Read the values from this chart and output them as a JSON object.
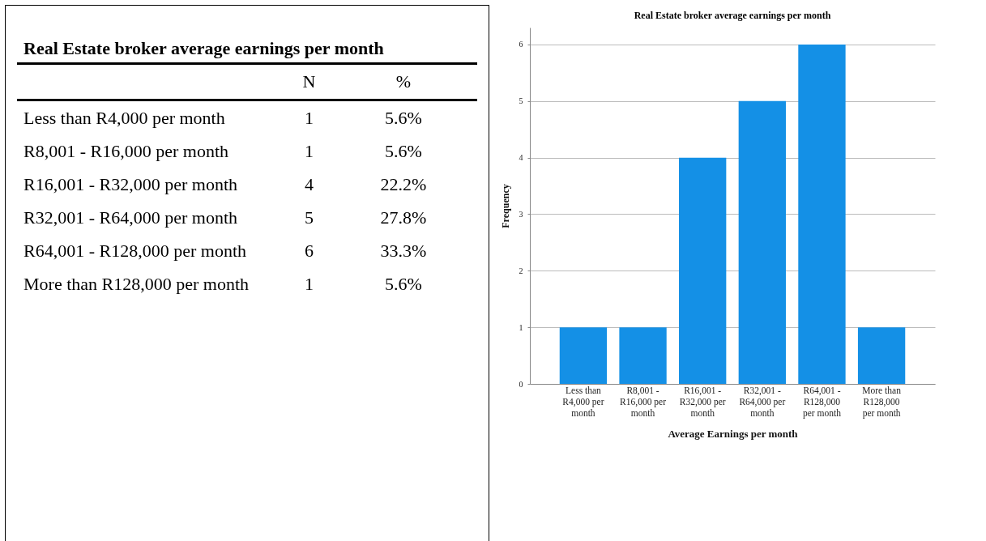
{
  "chart_data": [
    {
      "type": "other",
      "title": "Real Estate broker average earnings per month",
      "annotations": [
        "N",
        "%",
        "Less than R4,000 per month",
        "1",
        "5.6%",
        "R8,001 - R16,000 per month",
        "1",
        "5.6%",
        "R16,001 - R32,000 per month",
        "4",
        "22.2%",
        "R32,001 - R64,000 per month",
        "5",
        "27.8%",
        "R64,001 - R128,000 per month",
        "6",
        "33.3%",
        "More than R128,000 per month",
        "1",
        "5.6%"
      ]
    },
    {
      "type": "bar",
      "title": "Real Estate broker average earnings per month",
      "xlabel": "Average Earnings per month",
      "ylabel": "Frequency",
      "categories": [
        "Less than R4,000 per month",
        "R8,001 - R16,000 per month",
        "R16,001 - R32,000 per month",
        "R32,001 - R64,000 per month",
        "R64,001 - R128,000 per month",
        "More than R128,000 per month"
      ],
      "values": [
        1,
        1,
        4,
        5,
        6,
        1
      ],
      "color": "#1490e6",
      "ylim": [
        0,
        6.3
      ],
      "yticks": [
        0,
        1,
        2,
        3,
        4,
        5,
        6
      ],
      "grid": "y"
    }
  ]
}
